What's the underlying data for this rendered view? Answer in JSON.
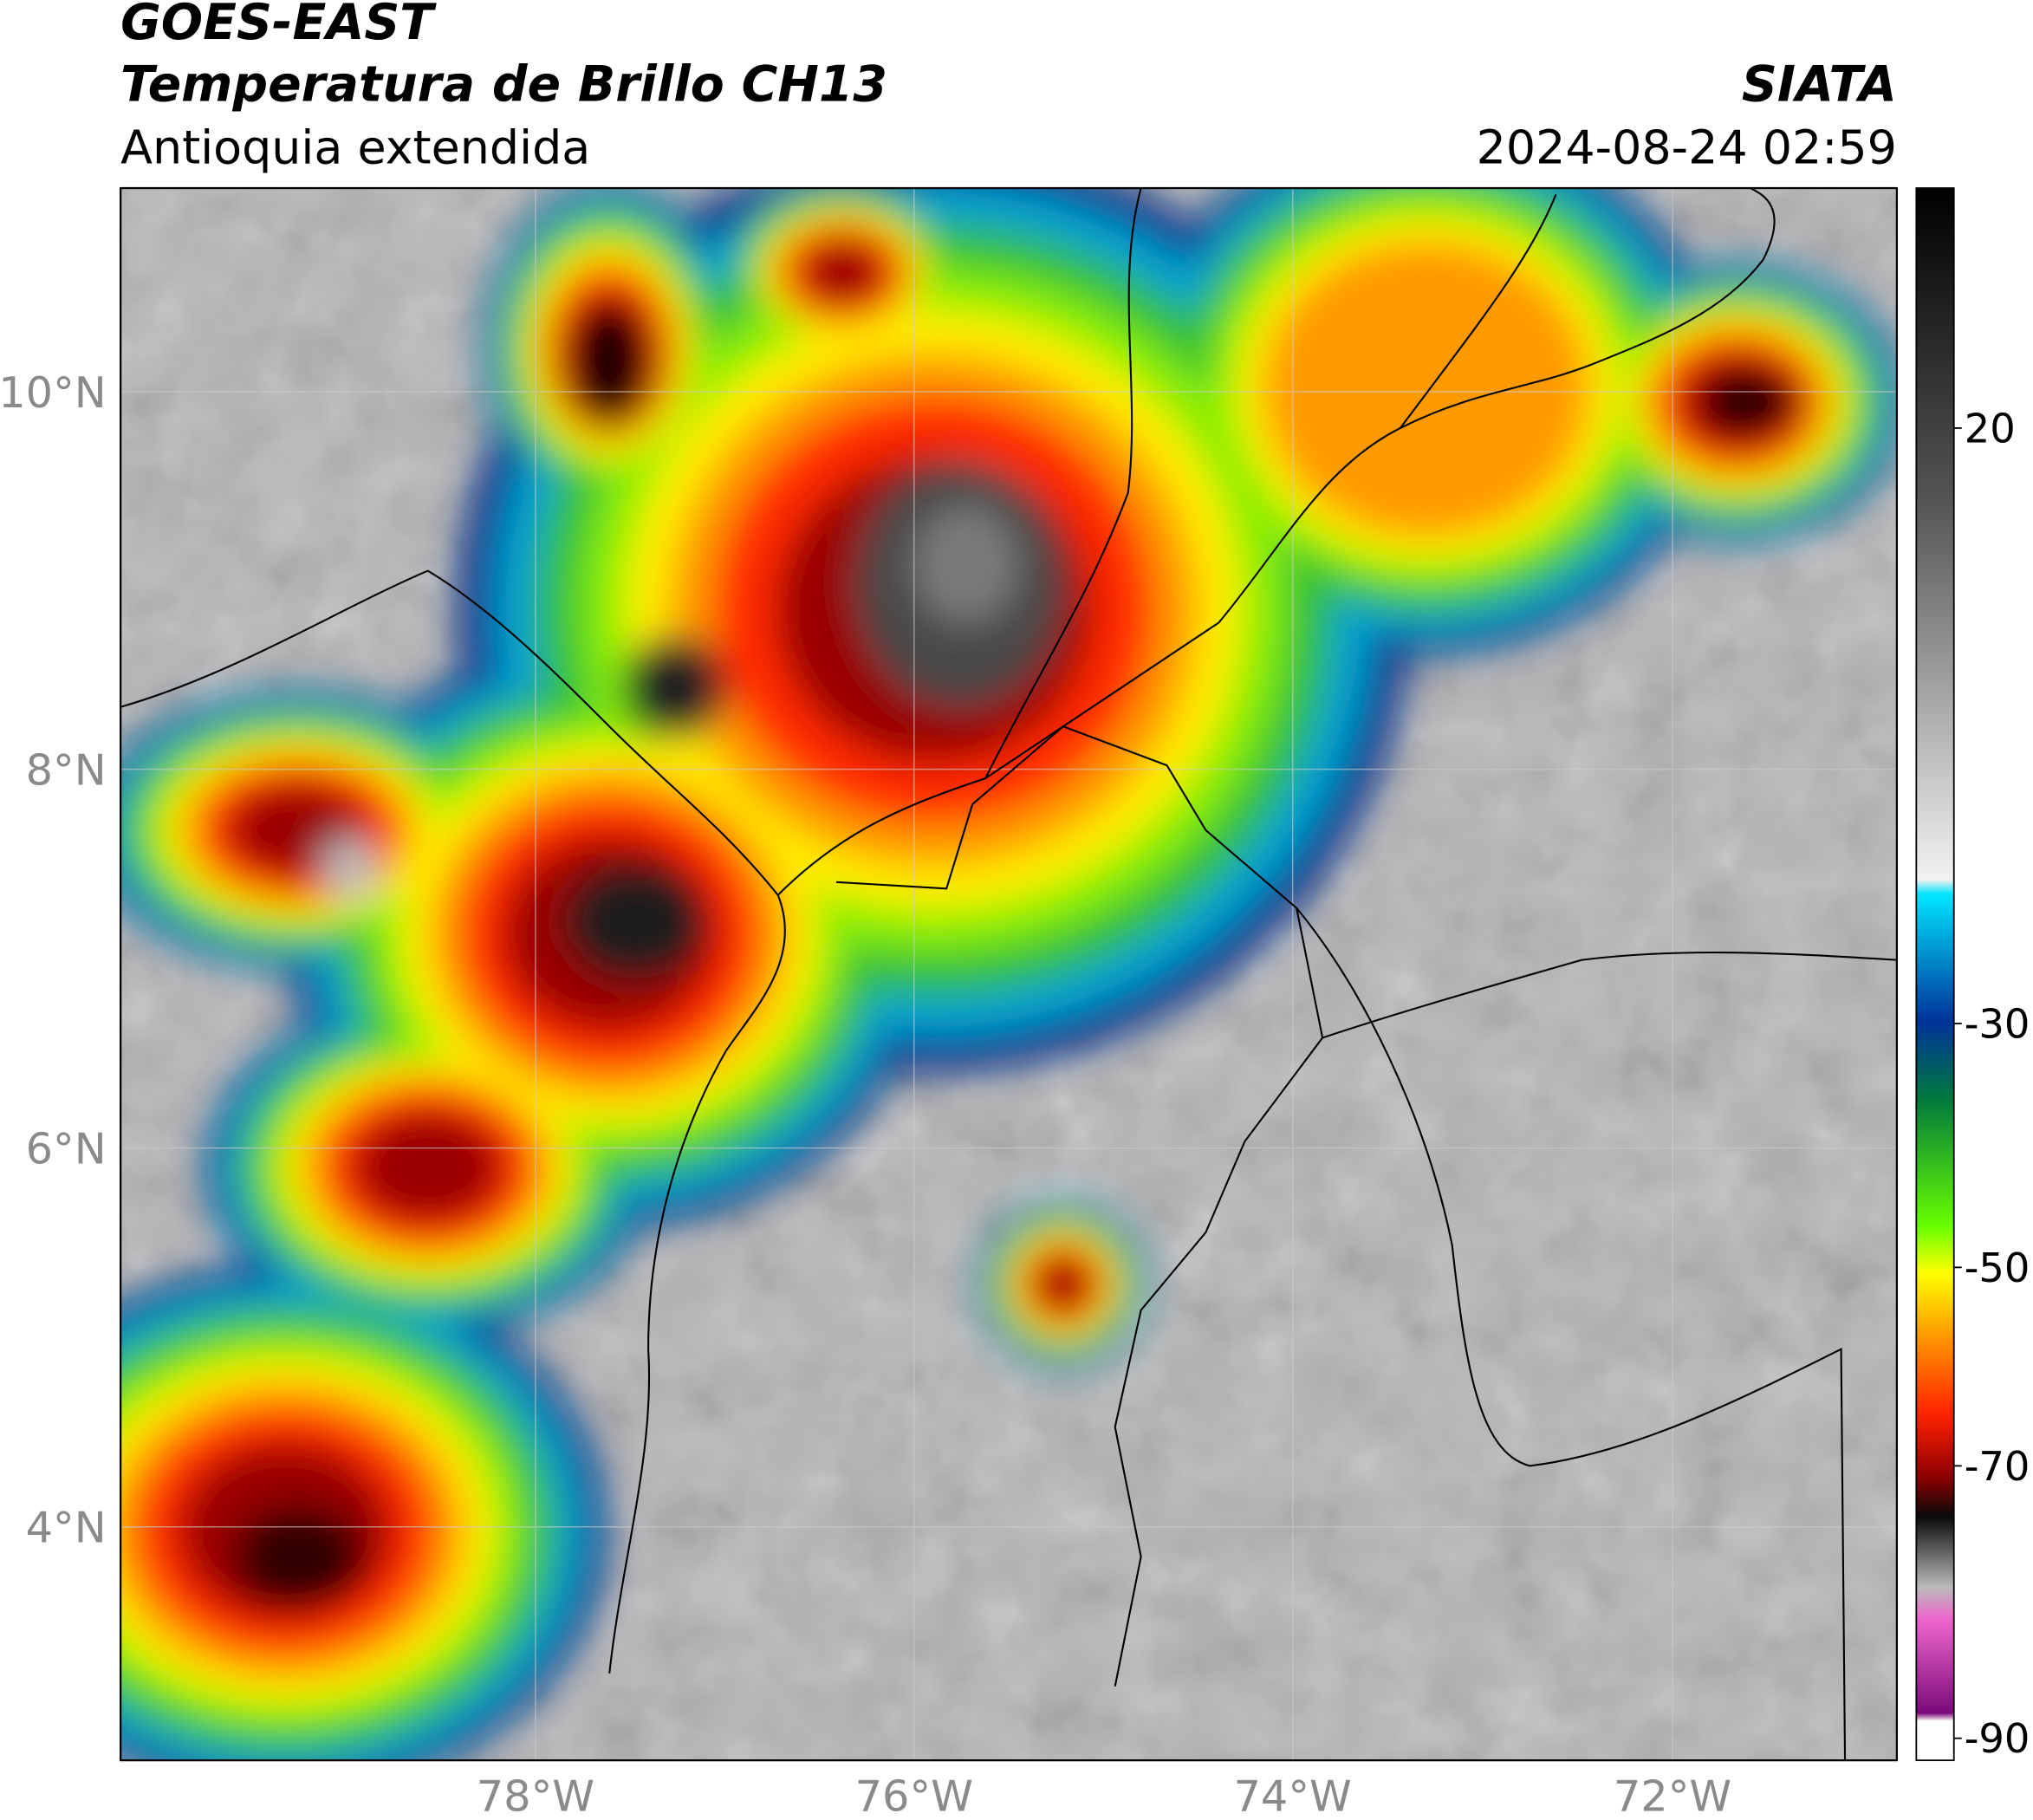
{
  "header": {
    "title": "GOES-EAST",
    "subtitle": "Temperatura de Brillo CH13",
    "region": "Antioquia extendida",
    "source": "SIATA",
    "datetime": "2024-08-24 02:59"
  },
  "map": {
    "lat_labels": [
      "10°N",
      "8°N",
      "6°N",
      "4°N"
    ],
    "lon_labels": [
      "78°W",
      "76°W",
      "74°W",
      "72°W"
    ]
  },
  "colorbar": {
    "ticks": [
      20,
      -30,
      -50,
      -70,
      -90
    ]
  }
}
